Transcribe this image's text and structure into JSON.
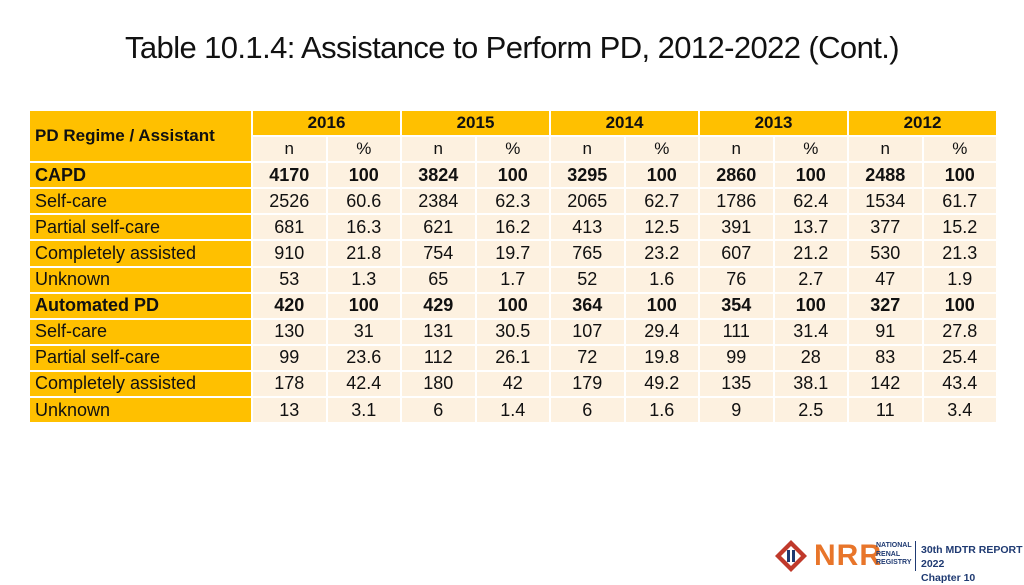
{
  "title": "Table 10.1.4: Assistance to Perform PD, 2012-2022 (Cont.)",
  "table": {
    "corner_label": "PD Regime / Assistant",
    "years": [
      "2016",
      "2015",
      "2014",
      "2013",
      "2012"
    ],
    "subheaders": [
      "n",
      "%",
      "n",
      "%",
      "n",
      "%",
      "n",
      "%",
      "n",
      "%"
    ],
    "rows": [
      {
        "label": "CAPD",
        "bold": true,
        "values": [
          "4170",
          "100",
          "3824",
          "100",
          "3295",
          "100",
          "2860",
          "100",
          "2488",
          "100"
        ]
      },
      {
        "label": "Self-care",
        "bold": false,
        "values": [
          "2526",
          "60.6",
          "2384",
          "62.3",
          "2065",
          "62.7",
          "1786",
          "62.4",
          "1534",
          "61.7"
        ]
      },
      {
        "label": "Partial self-care",
        "bold": false,
        "values": [
          "681",
          "16.3",
          "621",
          "16.2",
          "413",
          "12.5",
          "391",
          "13.7",
          "377",
          "15.2"
        ]
      },
      {
        "label": "Completely assisted",
        "bold": false,
        "values": [
          "910",
          "21.8",
          "754",
          "19.7",
          "765",
          "23.2",
          "607",
          "21.2",
          "530",
          "21.3"
        ]
      },
      {
        "label": "Unknown",
        "bold": false,
        "values": [
          "53",
          "1.3",
          "65",
          "1.7",
          "52",
          "1.6",
          "76",
          "2.7",
          "47",
          "1.9"
        ]
      },
      {
        "label": "Automated PD",
        "bold": true,
        "values": [
          "420",
          "100",
          "429",
          "100",
          "364",
          "100",
          "354",
          "100",
          "327",
          "100"
        ]
      },
      {
        "label": "Self-care",
        "bold": false,
        "values": [
          "130",
          "31",
          "131",
          "30.5",
          "107",
          "29.4",
          "111",
          "31.4",
          "91",
          "27.8"
        ]
      },
      {
        "label": "Partial self-care",
        "bold": false,
        "values": [
          "99",
          "23.6",
          "112",
          "26.1",
          "72",
          "19.8",
          "99",
          "28",
          "83",
          "25.4"
        ]
      },
      {
        "label": "Completely assisted",
        "bold": false,
        "values": [
          "178",
          "42.4",
          "180",
          "42",
          "179",
          "49.2",
          "135",
          "38.1",
          "142",
          "43.4"
        ]
      },
      {
        "label": "Unknown",
        "bold": false,
        "values": [
          "13",
          "3.1",
          "6",
          "1.4",
          "6",
          "1.6",
          "9",
          "2.5",
          "11",
          "3.4"
        ]
      }
    ]
  },
  "footer": {
    "logo_text": "NRR",
    "logo_sub": [
      "NATIONAL",
      "RENAL",
      "REGISTRY"
    ],
    "report_title": "30th MDTR REPORT 2022",
    "chapter": "Chapter 10",
    "colors": {
      "accent": "#ffc000",
      "cell_bg": "#fdf1e0",
      "logo_orange": "#e8752a",
      "logo_navy": "#1f3a72"
    }
  }
}
